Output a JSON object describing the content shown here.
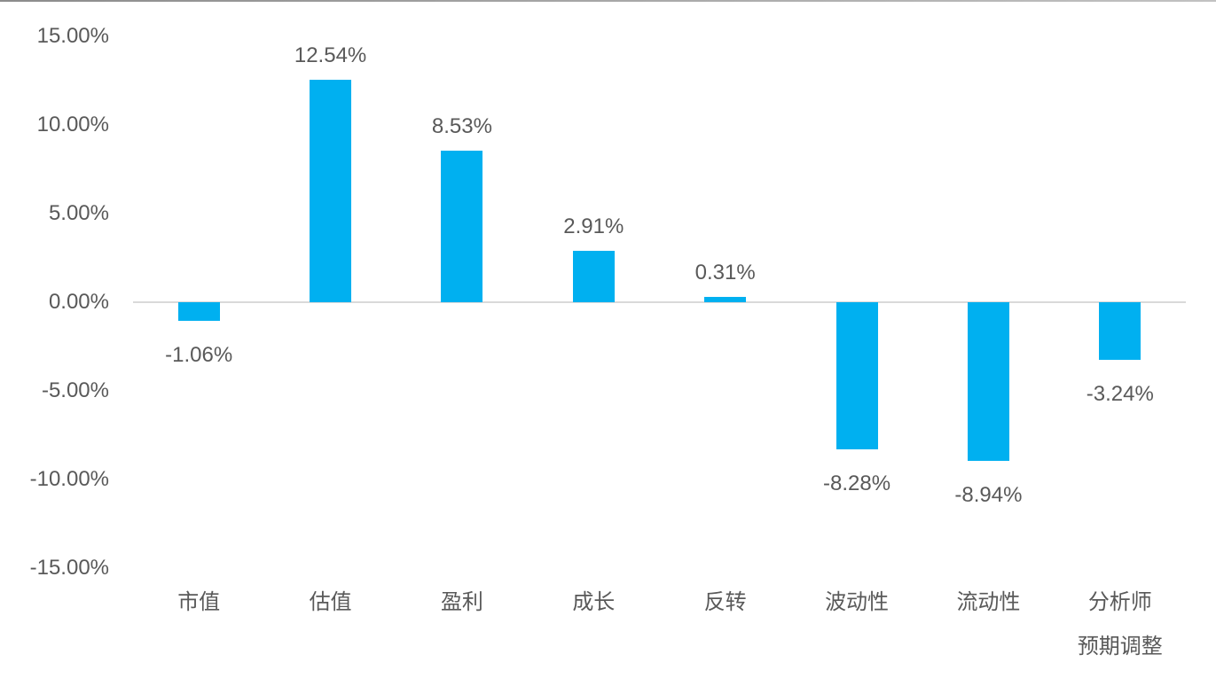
{
  "chart_data": {
    "type": "bar",
    "title": "",
    "xlabel": "",
    "ylabel": "",
    "categories": [
      "市值",
      "估值",
      "盈利",
      "成长",
      "反转",
      "波动性",
      "流动性",
      "分析师\n预期调整"
    ],
    "values": [
      -1.06,
      12.54,
      8.53,
      2.91,
      0.31,
      -8.28,
      -8.94,
      -3.24
    ],
    "value_labels": [
      "-1.06%",
      "12.54%",
      "8.53%",
      "2.91%",
      "0.31%",
      "-8.28%",
      "-8.94%",
      "-3.24%"
    ],
    "y_ticks": [
      {
        "value": 15,
        "label": "15.00%"
      },
      {
        "value": 10,
        "label": "10.00%"
      },
      {
        "value": 5,
        "label": "5.00%"
      },
      {
        "value": 0,
        "label": "0.00%"
      },
      {
        "value": -5,
        "label": "-5.00%"
      },
      {
        "value": -10,
        "label": "-10.00%"
      },
      {
        "value": -15,
        "label": "-15.00%"
      }
    ],
    "ylim": [
      -15,
      15
    ],
    "grid": false,
    "legend": false,
    "colors": {
      "bar": "#00B0F0",
      "text": "#595959",
      "zero_line": "#D9D9D9",
      "background": "#FFFFFF"
    }
  }
}
